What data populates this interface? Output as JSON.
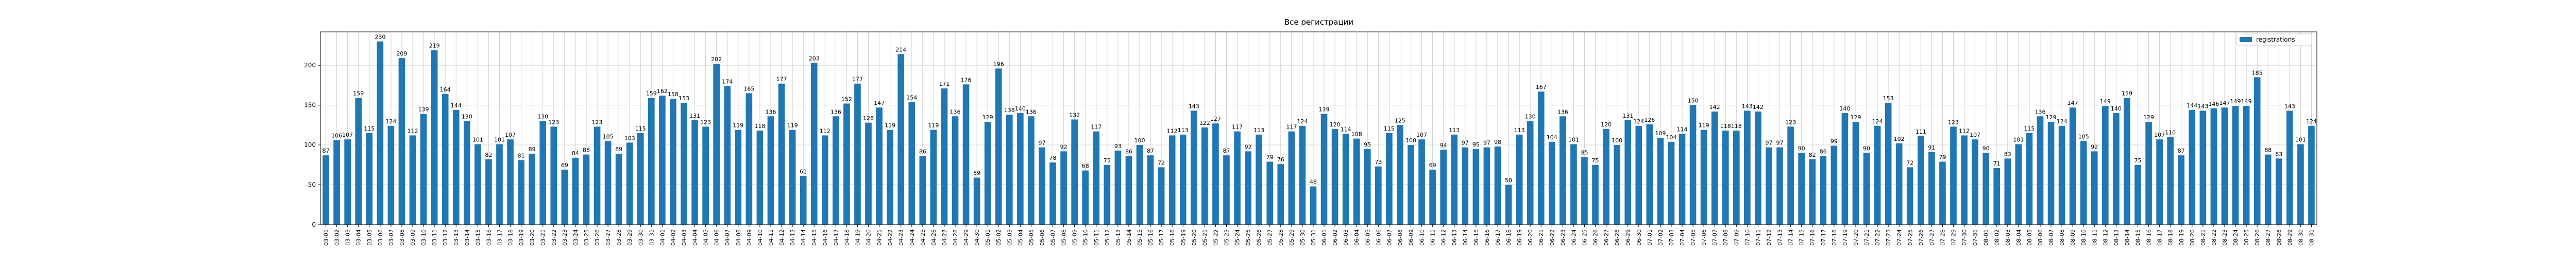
{
  "chart_data": {
    "type": "bar",
    "title": "Все регистрации",
    "categories": [
      "03-01",
      "03-02",
      "03-03",
      "03-04",
      "03-05",
      "03-06",
      "03-07",
      "03-08",
      "03-09",
      "03-10",
      "03-11",
      "03-12",
      "03-13",
      "03-14",
      "03-15",
      "03-16",
      "03-17",
      "03-18",
      "03-19",
      "03-20",
      "03-21",
      "03-22",
      "03-23",
      "03-24",
      "03-25",
      "03-26",
      "03-27",
      "03-28",
      "03-29",
      "03-30",
      "03-31",
      "04-01",
      "04-02",
      "04-03",
      "04-04",
      "04-05",
      "04-06",
      "04-07",
      "04-08",
      "04-09",
      "04-10",
      "04-11",
      "04-12",
      "04-13",
      "04-14",
      "04-15",
      "04-16",
      "04-17",
      "04-18",
      "04-19",
      "04-20",
      "04-21",
      "04-22",
      "04-23",
      "04-24",
      "04-25",
      "04-26",
      "04-27",
      "04-28",
      "04-29",
      "04-30",
      "05-01",
      "05-02",
      "05-03",
      "05-04",
      "05-05",
      "05-06",
      "05-07",
      "05-08",
      "05-09",
      "05-10",
      "05-11",
      "05-12",
      "05-13",
      "05-14",
      "05-15",
      "05-16",
      "05-17",
      "05-18",
      "05-19",
      "05-20",
      "05-21",
      "05-22",
      "05-23",
      "05-24",
      "05-25",
      "05-26",
      "05-27",
      "05-28",
      "05-29",
      "05-30",
      "05-31",
      "06-01",
      "06-02",
      "06-03",
      "06-04",
      "06-05",
      "06-06",
      "06-07",
      "06-08",
      "06-09",
      "06-10",
      "06-11",
      "06-12",
      "06-13",
      "06-14",
      "06-15",
      "06-16",
      "06-17",
      "06-18",
      "06-19",
      "06-20",
      "06-21",
      "06-22",
      "06-23",
      "06-24",
      "06-25",
      "06-26",
      "06-27",
      "06-28",
      "06-29",
      "06-30",
      "07-01",
      "07-02",
      "07-03",
      "07-04",
      "07-05",
      "07-06",
      "07-07",
      "07-08",
      "07-09",
      "07-10",
      "07-11",
      "07-12",
      "07-13",
      "07-14",
      "07-15",
      "07-16",
      "07-17",
      "07-18",
      "07-19",
      "07-20",
      "07-21",
      "07-22",
      "07-23",
      "07-24",
      "07-25",
      "07-26",
      "07-27",
      "07-28",
      "07-29",
      "07-30",
      "07-31",
      "08-01",
      "08-02",
      "08-03",
      "08-04",
      "08-05",
      "08-06",
      "08-07",
      "08-08",
      "08-09",
      "08-10",
      "08-11",
      "08-12",
      "08-13",
      "08-14",
      "08-15",
      "08-16",
      "08-17",
      "08-18",
      "08-19",
      "08-20",
      "08-21",
      "08-22",
      "08-23",
      "08-24",
      "08-25",
      "08-26",
      "08-27",
      "08-28",
      "08-29",
      "08-30",
      "08-31"
    ],
    "series": [
      {
        "name": "registrations",
        "color": "#1f77b4",
        "values": [
          87,
          106,
          107,
          159,
          115,
          230,
          124,
          209,
          112,
          139,
          219,
          164,
          144,
          130,
          101,
          82,
          101,
          107,
          81,
          89,
          130,
          123,
          69,
          84,
          88,
          123,
          105,
          89,
          103,
          115,
          159,
          162,
          158,
          153,
          131,
          123,
          202,
          174,
          119,
          165,
          118,
          136,
          177,
          119,
          61,
          203,
          112,
          136,
          152,
          177,
          128,
          147,
          119,
          214,
          154,
          86,
          119,
          171,
          136,
          176,
          59,
          129,
          196,
          138,
          140,
          136,
          97,
          78,
          92,
          132,
          68,
          117,
          75,
          93,
          86,
          100,
          87,
          72,
          112,
          113,
          143,
          122,
          127,
          87,
          117,
          92,
          113,
          79,
          76,
          117,
          124,
          48,
          139,
          120,
          114,
          108,
          95,
          73,
          115,
          125,
          100,
          107,
          69,
          94,
          113,
          97,
          95,
          97,
          98,
          50,
          113,
          130,
          167,
          104,
          136,
          101,
          85,
          75,
          120,
          100,
          131,
          124,
          126,
          109,
          104,
          114,
          150,
          119,
          142,
          118,
          118,
          143,
          142,
          97,
          97,
          123,
          90,
          82,
          86,
          99,
          140,
          129,
          90,
          124,
          153,
          102,
          72,
          111,
          91,
          79,
          123,
          112,
          107,
          90,
          71,
          83,
          101,
          115,
          136,
          129,
          124,
          147,
          105,
          92,
          149,
          140,
          159,
          75,
          129,
          107,
          110,
          87,
          144,
          143,
          146,
          147,
          149,
          149,
          185,
          88,
          83,
          143,
          101,
          124
        ]
      }
    ],
    "ylim": [
      0,
      242
    ],
    "yticks": [
      0,
      50,
      100,
      150,
      200
    ],
    "grid": true,
    "legend": "upper right"
  }
}
